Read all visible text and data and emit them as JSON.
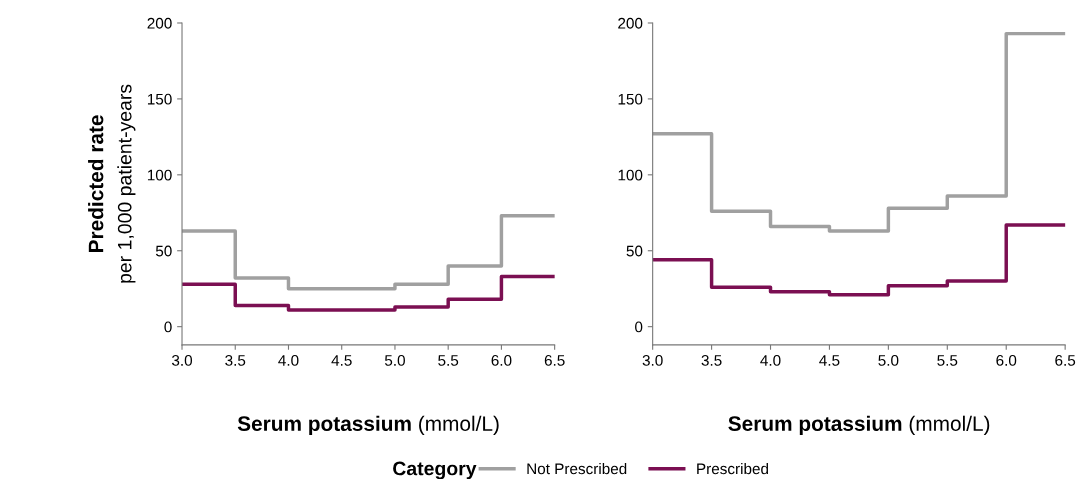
{
  "chart_data": [
    {
      "type": "step",
      "ylabel": "Predicted rate\nper 1,000 patient-years",
      "xlabel": "Serum potassium (mmol/L)",
      "legend": "bottom",
      "legend_title": "Category",
      "x": [
        3.0,
        3.5,
        4.0,
        4.5,
        5.0,
        5.5,
        6.0,
        6.5
      ],
      "xlim": [
        3.0,
        6.5
      ],
      "xticks": [
        {
          "value": 3.0,
          "label": "3.0"
        },
        {
          "value": 3.5,
          "label": "3.5"
        },
        {
          "value": 4.0,
          "label": "4.0"
        },
        {
          "value": 4.5,
          "label": "4.5"
        },
        {
          "value": 5.0,
          "label": "5.0"
        },
        {
          "value": 5.5,
          "label": "5.5"
        },
        {
          "value": 6.0,
          "label": "6.0"
        },
        {
          "value": 6.5,
          "label": "6.5"
        }
      ],
      "ylim": [
        -12,
        200
      ],
      "yticks": [
        0,
        50,
        100,
        150,
        200
      ],
      "grid": false,
      "series": [
        {
          "name": "Not Prescribed",
          "color": "#a0a0a0",
          "values": [
            63,
            32,
            25,
            25,
            28,
            40,
            73,
            73
          ]
        },
        {
          "name": "Prescribed",
          "color": "#7b0f52",
          "values": [
            28,
            14,
            11,
            11,
            13,
            18,
            33,
            33
          ]
        }
      ]
    },
    {
      "type": "step",
      "xlabel": "Serum potassium (mmol/L)",
      "x": [
        3.0,
        3.5,
        4.0,
        4.5,
        5.0,
        5.5,
        6.0,
        6.5
      ],
      "xlim": [
        3.0,
        6.5
      ],
      "xticks": [
        {
          "value": 3.0,
          "label": "3.0"
        },
        {
          "value": 3.5,
          "label": "3.5"
        },
        {
          "value": 4.0,
          "label": "4.0"
        },
        {
          "value": 4.5,
          "label": "4.5"
        },
        {
          "value": 5.0,
          "label": "5.0"
        },
        {
          "value": 5.5,
          "label": "5.5"
        },
        {
          "value": 6.0,
          "label": "6.0"
        },
        {
          "value": 6.5,
          "label": "6.5"
        }
      ],
      "ylim": [
        -12,
        200
      ],
      "yticks": [
        0,
        50,
        100,
        150,
        200
      ],
      "grid": false,
      "series": [
        {
          "name": "Not Prescribed",
          "color": "#a0a0a0",
          "values": [
            127,
            76,
            66,
            63,
            78,
            86,
            193,
            193
          ]
        },
        {
          "name": "Prescribed",
          "color": "#7b0f52",
          "values": [
            44,
            26,
            23,
            21,
            27,
            30,
            67,
            67
          ]
        }
      ]
    }
  ]
}
